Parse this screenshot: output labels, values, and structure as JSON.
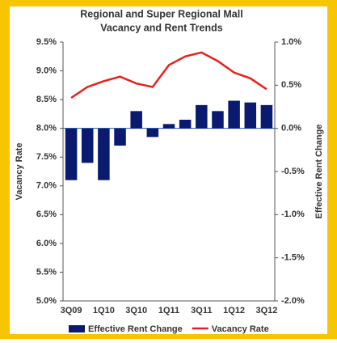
{
  "chart_data": {
    "type": "bar-line",
    "title": "Regional and Super Regional Mall",
    "subtitle": "Vacancy and Rent Trends",
    "y_label": "Vacancy Rate",
    "y2_label": "Effective Rent Change",
    "categories": [
      "3Q09",
      null,
      "1Q10",
      null,
      "3Q10",
      null,
      "1Q11",
      null,
      "3Q11",
      null,
      "1Q12",
      null,
      "3Q12"
    ],
    "series": [
      {
        "name": "Effective Rent Change",
        "type": "bar",
        "axis": "y2",
        "color": "#0a1a6e",
        "values": [
          -0.6,
          -0.4,
          -0.6,
          -0.2,
          0.2,
          -0.1,
          0.05,
          0.1,
          0.27,
          0.2,
          0.32,
          0.3,
          0.27
        ]
      },
      {
        "name": "Vacancy Rate",
        "type": "line",
        "color": "#e8201c",
        "values": [
          8.53,
          8.72,
          8.82,
          8.9,
          8.78,
          8.72,
          9.1,
          9.25,
          9.32,
          9.17,
          8.97,
          8.87,
          8.68
        ]
      }
    ],
    "ylim": [
      5.0,
      9.5
    ],
    "yticks": [
      {
        "value": 5.0,
        "label": "5.0%"
      },
      {
        "value": 5.5,
        "label": "5.5%"
      },
      {
        "value": 6.0,
        "label": "6.0%"
      },
      {
        "value": 6.5,
        "label": "6.5%"
      },
      {
        "value": 7.0,
        "label": "7.0%"
      },
      {
        "value": 7.5,
        "label": "7.5%"
      },
      {
        "value": 8.0,
        "label": "8.0%"
      },
      {
        "value": 8.5,
        "label": "8.5%"
      },
      {
        "value": 9.0,
        "label": "9.0%"
      },
      {
        "value": 9.5,
        "label": "9.5%"
      }
    ],
    "y2lim": [
      -2.0,
      1.0
    ],
    "y2ticks": [
      {
        "value": -2.0,
        "label": "-2.0%"
      },
      {
        "value": -1.5,
        "label": "-1.5%"
      },
      {
        "value": -1.0,
        "label": "-1.0%"
      },
      {
        "value": -0.5,
        "label": "-0.5%"
      },
      {
        "value": 0.0,
        "label": "0.0%"
      },
      {
        "value": 0.5,
        "label": "0.5%"
      },
      {
        "value": 1.0,
        "label": "1.0%"
      }
    ]
  }
}
